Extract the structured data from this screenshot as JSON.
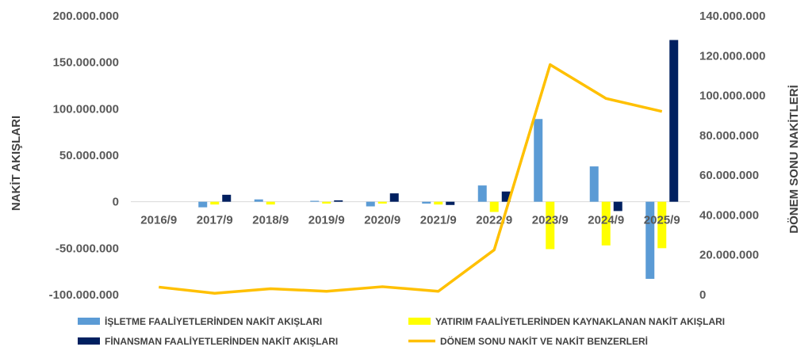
{
  "chart_data": {
    "type": "bar",
    "categories": [
      "2016/9",
      "2017/9",
      "2018/9",
      "2019/9",
      "2020/9",
      "2021/9",
      "2022/9",
      "2023/9",
      "2024/9",
      "2025/9"
    ],
    "ylabel": "NAKİT AKIŞLARI",
    "y2label": "DÖNEM SONU NAKİTLERİ",
    "ylim": [
      -100000000,
      200000000
    ],
    "y2lim": [
      0,
      140000000
    ],
    "yticks": [
      "200.000.000",
      "150.000.000",
      "100.000.000",
      "50.000.000",
      "0",
      "-50.000.000",
      "-100.000.000"
    ],
    "y2ticks": [
      "140.000.000",
      "120.000.000",
      "100.000.000",
      "80.000.000",
      "60.000.000",
      "40.000.000",
      "20.000.000",
      "0"
    ],
    "grid": false,
    "legend_position": "bottom",
    "series": [
      {
        "name": "İŞLETME FAALİYETLERİNDEN NAKİT AKIŞLARI",
        "type": "bar",
        "axis": "left",
        "color": "#5B9BD5",
        "values": [
          0,
          -6000000,
          2500000,
          1000000,
          -5000000,
          -2000000,
          17500000,
          89000000,
          38000000,
          -83000000
        ]
      },
      {
        "name": "YATIRIM FAALİYETLERİNDEN KAYNAKLANAN NAKİT AKIŞLARI",
        "type": "bar",
        "axis": "left",
        "color": "#FFFF00",
        "values": [
          0,
          -3000000,
          -3000000,
          -2000000,
          -2000000,
          -3000000,
          -11000000,
          -51000000,
          -47000000,
          -50000000
        ]
      },
      {
        "name": "FİNANSMAN FAALİYETLERİNDEN NAKİT AKIŞLARI",
        "type": "bar",
        "axis": "left",
        "color": "#002060",
        "values": [
          0,
          7500000,
          0,
          1500000,
          9000000,
          -3500000,
          11000000,
          0,
          -10000000,
          174000000
        ]
      },
      {
        "name": "DÖNEM SONU NAKİT VE NAKİT BENZERLERİ",
        "type": "line",
        "axis": "right",
        "color": "#FFC000",
        "values": [
          3800000,
          700000,
          3000000,
          1700000,
          4000000,
          1700000,
          22500000,
          115500000,
          98500000,
          92000000
        ]
      }
    ]
  }
}
